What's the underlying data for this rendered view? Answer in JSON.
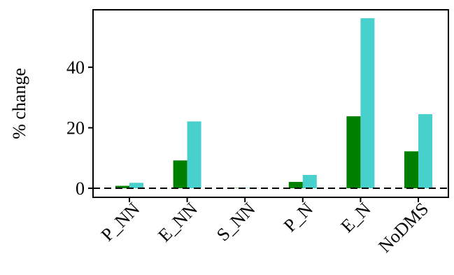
{
  "chart_data": {
    "type": "bar",
    "ylabel": "% change",
    "xlabel": "",
    "categories": [
      "P_NN",
      "E_NN",
      "S_NN",
      "P_N",
      "E_N",
      "NoDMS"
    ],
    "series": [
      {
        "color": "#008000",
        "values": [
          0.8,
          9.2,
          0.1,
          2.1,
          23.8,
          12.2
        ]
      },
      {
        "color": "#48D1CC",
        "values": [
          1.8,
          22.1,
          0.1,
          4.4,
          56.2,
          24.5
        ]
      }
    ],
    "ylim": [
      -3,
      59
    ],
    "yticks": [
      0,
      20,
      40
    ],
    "reference_line": {
      "y": 0,
      "style": "dashed"
    },
    "grid": false
  }
}
